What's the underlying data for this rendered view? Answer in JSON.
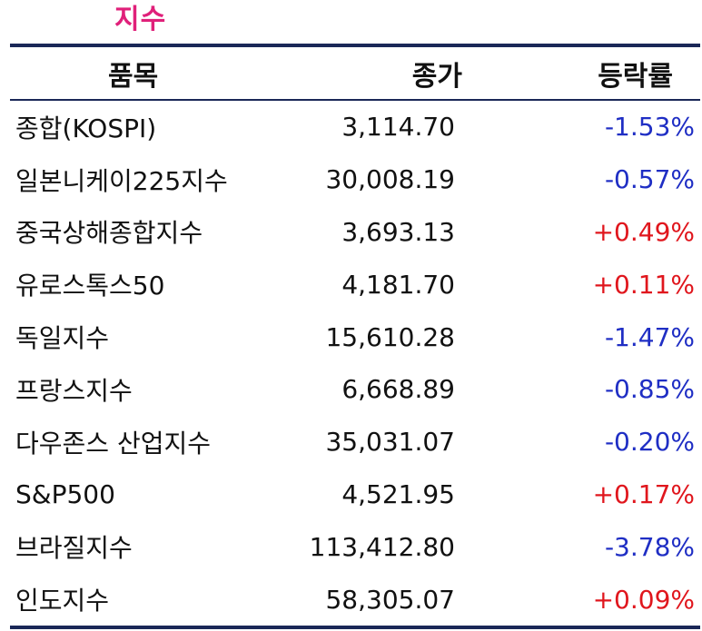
{
  "title": "지수",
  "headers": {
    "name": "품목",
    "close": "종가",
    "change": "등락률"
  },
  "rows": [
    {
      "name": "종합(KOSPI)",
      "close": "3,114.70",
      "change": "-1.53%"
    },
    {
      "name": "일본니케이225지수",
      "close": "30,008.19",
      "change": "-0.57%"
    },
    {
      "name": "중국상해종합지수",
      "close": "3,693.13",
      "change": "+0.49%"
    },
    {
      "name": "유로스톡스50",
      "close": "4,181.70",
      "change": "+0.11%"
    },
    {
      "name": "독일지수",
      "close": "15,610.28",
      "change": "-1.47%"
    },
    {
      "name": "프랑스지수",
      "close": "6,668.89",
      "change": "-0.85%"
    },
    {
      "name": "다우존스 산업지수",
      "close": "35,031.07",
      "change": "-0.20%"
    },
    {
      "name": "S&P500",
      "close": "4,521.95",
      "change": "+0.17%"
    },
    {
      "name": "브라질지수",
      "close": "113,412.80",
      "change": "-3.78%"
    },
    {
      "name": "인도지수",
      "close": "58,305.07",
      "change": "+0.09%"
    }
  ],
  "colors": {
    "title": "#e0207a",
    "rule": "#1a2757",
    "down": "#1f2ec4",
    "up": "#e0161d"
  }
}
